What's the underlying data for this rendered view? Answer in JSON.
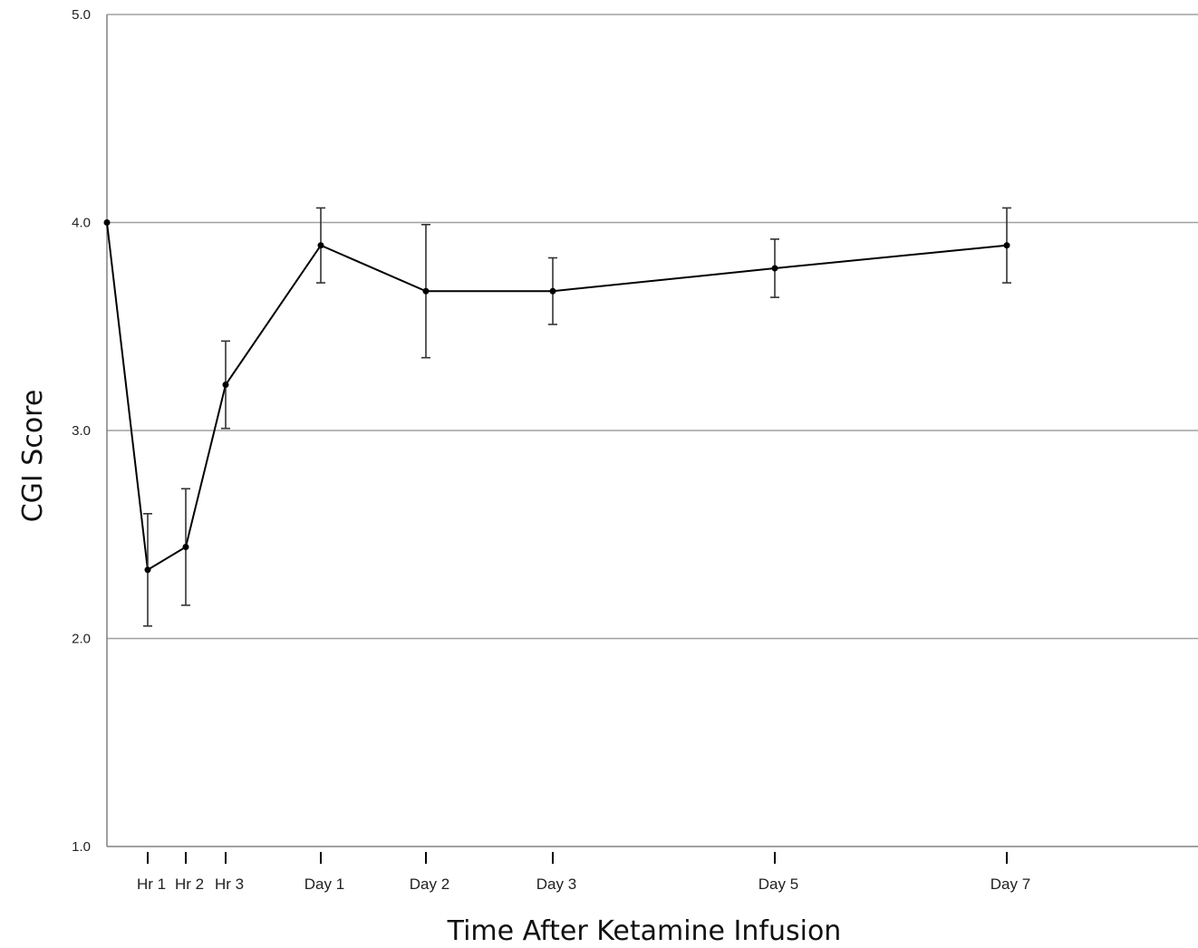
{
  "chart_data": {
    "type": "line",
    "title": "",
    "xlabel": "Time After Ketamine Infusion",
    "ylabel": "CGI Score",
    "ylim": [
      1.0,
      5.0
    ],
    "yticks": [
      "1.0",
      "2.0",
      "3.0",
      "4.0",
      "5.0"
    ],
    "grid": "horizontal",
    "x_time_hours": [
      0,
      1,
      2,
      3,
      24,
      48,
      72,
      120,
      168
    ],
    "tick_labels": [
      "Hr 1",
      "Hr 2",
      "Hr 3",
      "Day 1",
      "Day 2",
      "Day 3",
      "Day 5",
      "Day 7"
    ],
    "tick_hours": [
      1,
      2,
      3,
      24,
      48,
      72,
      120,
      168
    ],
    "series": [
      {
        "values": [
          4.0,
          2.33,
          2.44,
          3.22,
          3.89,
          3.67,
          3.67,
          3.78,
          3.89
        ],
        "error": [
          0,
          0.27,
          0.28,
          0.21,
          0.18,
          0.32,
          0.16,
          0.14,
          0.18
        ]
      }
    ],
    "colors": {
      "line": "#000000",
      "grid": "#a0a0a0",
      "axis": "#808080"
    }
  }
}
